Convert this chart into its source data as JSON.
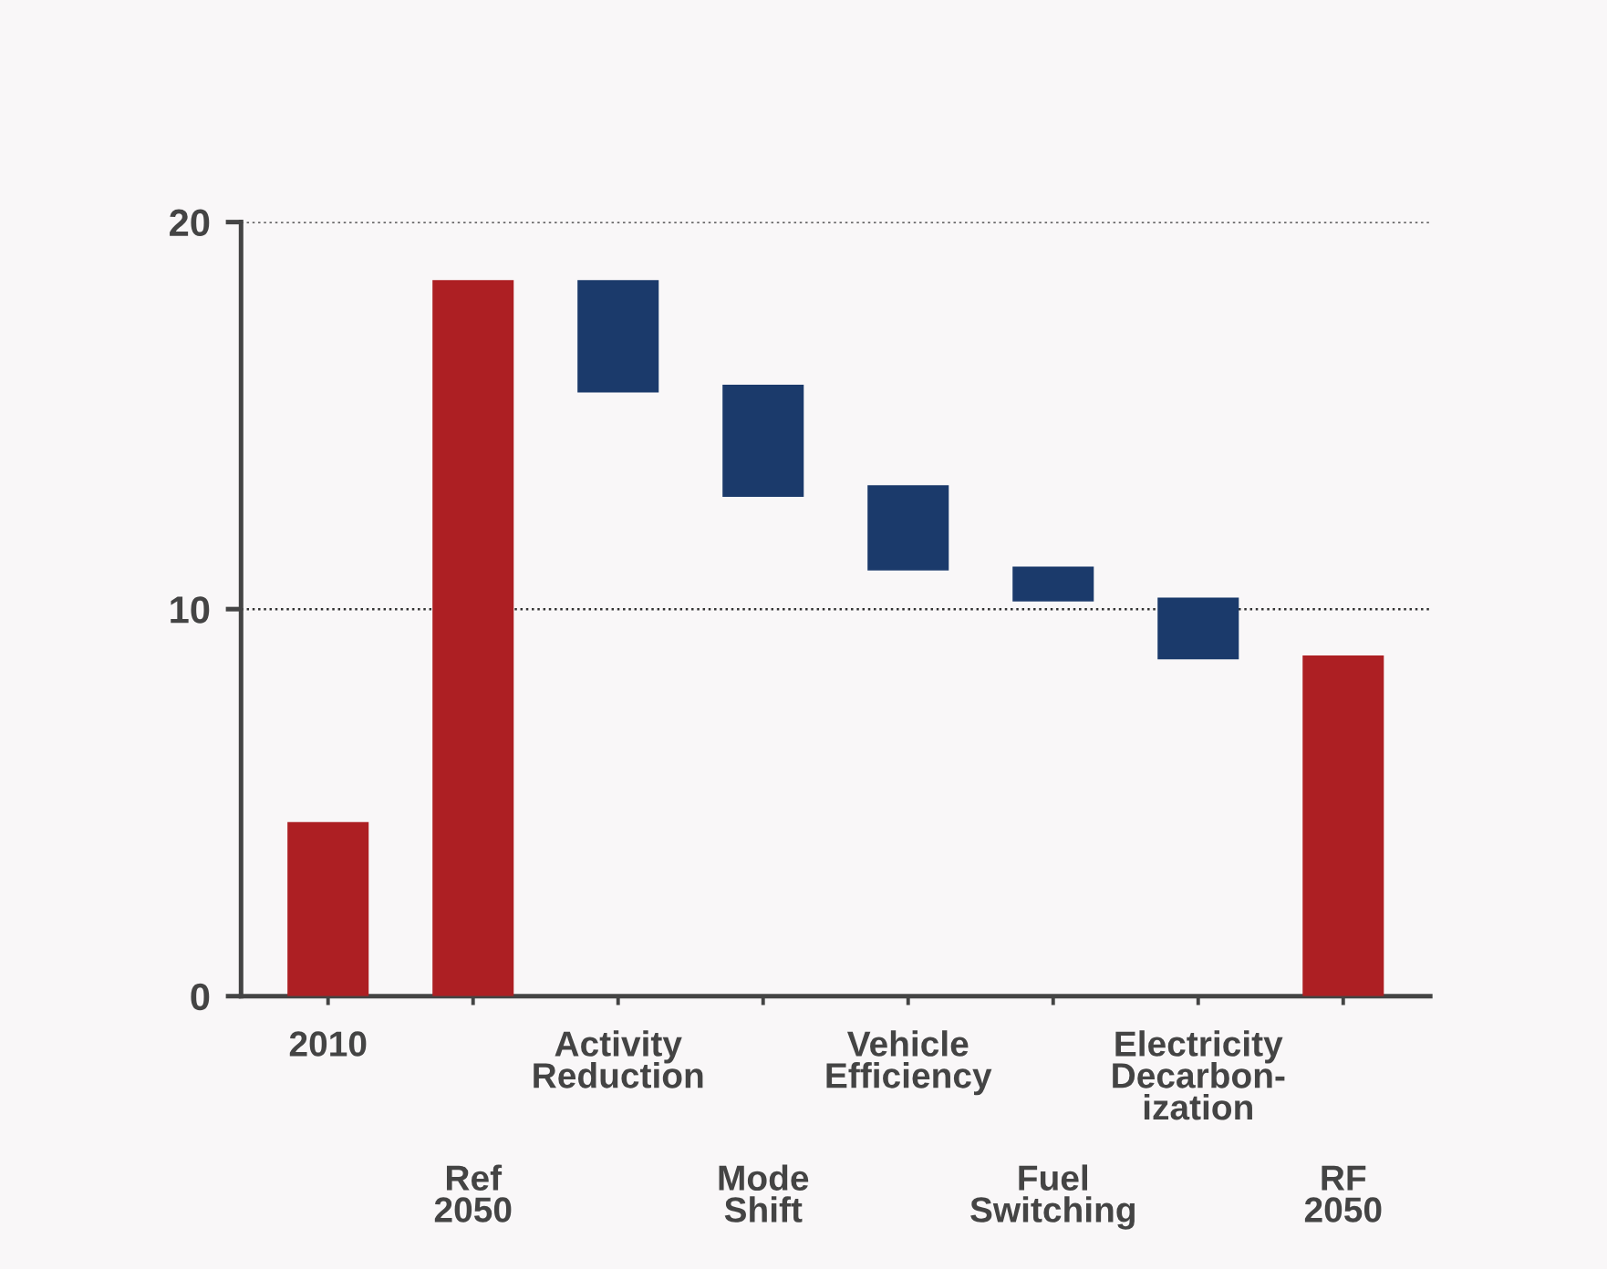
{
  "chart_data": {
    "type": "bar",
    "categories": [
      "2010",
      "Ref\n2050",
      "Activity\nReduction",
      "Mode\nShift",
      "Vehicle\nEfficiency",
      "Fuel\nSwitching",
      "Electricity\nDecarbon-\nization",
      "RF\n2050"
    ],
    "values": [
      4.5,
      18.5,
      2.9,
      2.9,
      2.2,
      0.9,
      1.6,
      8.8
    ],
    "base": [
      0,
      0,
      15.6,
      12.9,
      11.0,
      10.2,
      8.7,
      0
    ],
    "colors": [
      "#ad1f23",
      "#ad1f23",
      "#1b3a6b",
      "#1b3a6b",
      "#1b3a6b",
      "#1b3a6b",
      "#1b3a6b",
      "#ad1f23"
    ],
    "ylim": [
      0,
      20
    ],
    "yticks": [
      0,
      10,
      20
    ],
    "grid": "y"
  }
}
